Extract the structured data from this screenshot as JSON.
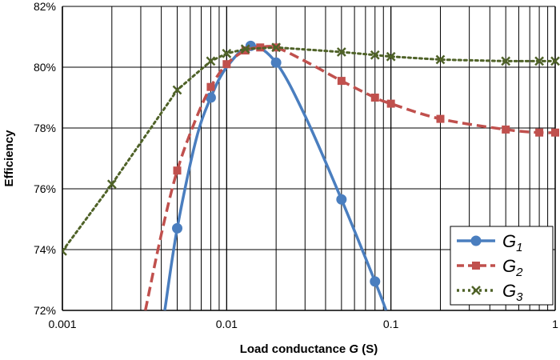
{
  "chart_data": {
    "type": "line",
    "x_scale": "log",
    "xlim": [
      0.001,
      1
    ],
    "ylim": [
      72,
      82
    ],
    "xlabel_prefix": "Load conductance ",
    "xlabel_var": "G",
    "xlabel_suffix": " (S)",
    "ylabel": "Efficiency",
    "grid": true,
    "legend_position": "bottom-right",
    "x_ticks": [
      {
        "value": 0.001,
        "label": "0.001"
      },
      {
        "value": 0.01,
        "label": "0.01"
      },
      {
        "value": 0.1,
        "label": "0.1"
      },
      {
        "value": 1,
        "label": "1"
      }
    ],
    "y_ticks": [
      {
        "value": 72,
        "label": "72%"
      },
      {
        "value": 74,
        "label": "74%"
      },
      {
        "value": 76,
        "label": "76%"
      },
      {
        "value": 78,
        "label": "78%"
      },
      {
        "value": 80,
        "label": "80%"
      },
      {
        "value": 82,
        "label": "82%"
      }
    ],
    "series": [
      {
        "name": "G",
        "name_sub": "1",
        "color": "#4a7ebf",
        "line_style": "solid",
        "marker": "circle",
        "points": [
          {
            "x": 0.005,
            "y": 74.7
          },
          {
            "x": 0.008,
            "y": 79.0
          },
          {
            "x": 0.014,
            "y": 80.7
          },
          {
            "x": 0.02,
            "y": 80.15
          },
          {
            "x": 0.05,
            "y": 75.65
          },
          {
            "x": 0.08,
            "y": 72.95
          }
        ],
        "curve": [
          {
            "x": 0.0042,
            "y": 72.0
          },
          {
            "x": 0.005,
            "y": 74.7
          },
          {
            "x": 0.0065,
            "y": 77.6
          },
          {
            "x": 0.008,
            "y": 79.0
          },
          {
            "x": 0.01,
            "y": 80.0
          },
          {
            "x": 0.014,
            "y": 80.7
          },
          {
            "x": 0.02,
            "y": 80.15
          },
          {
            "x": 0.03,
            "y": 78.4
          },
          {
            "x": 0.05,
            "y": 75.65
          },
          {
            "x": 0.08,
            "y": 72.95
          },
          {
            "x": 0.0935,
            "y": 72.0
          }
        ]
      },
      {
        "name": "G",
        "name_sub": "2",
        "color": "#c0504d",
        "line_style": "dashed",
        "marker": "square",
        "points": [
          {
            "x": 0.005,
            "y": 76.6
          },
          {
            "x": 0.008,
            "y": 79.35
          },
          {
            "x": 0.01,
            "y": 80.1
          },
          {
            "x": 0.013,
            "y": 80.55
          },
          {
            "x": 0.016,
            "y": 80.65
          },
          {
            "x": 0.02,
            "y": 80.65
          },
          {
            "x": 0.05,
            "y": 79.55
          },
          {
            "x": 0.08,
            "y": 79.0
          },
          {
            "x": 0.1,
            "y": 78.8
          },
          {
            "x": 0.2,
            "y": 78.3
          },
          {
            "x": 0.5,
            "y": 77.95
          },
          {
            "x": 0.8,
            "y": 77.85
          },
          {
            "x": 1,
            "y": 77.85
          }
        ],
        "curve": [
          {
            "x": 0.0032,
            "y": 72.0
          },
          {
            "x": 0.004,
            "y": 74.5
          },
          {
            "x": 0.005,
            "y": 76.6
          },
          {
            "x": 0.0065,
            "y": 78.3
          },
          {
            "x": 0.008,
            "y": 79.35
          },
          {
            "x": 0.01,
            "y": 80.1
          },
          {
            "x": 0.013,
            "y": 80.55
          },
          {
            "x": 0.016,
            "y": 80.65
          },
          {
            "x": 0.02,
            "y": 80.65
          },
          {
            "x": 0.03,
            "y": 80.2
          },
          {
            "x": 0.05,
            "y": 79.55
          },
          {
            "x": 0.08,
            "y": 79.0
          },
          {
            "x": 0.1,
            "y": 78.8
          },
          {
            "x": 0.2,
            "y": 78.3
          },
          {
            "x": 0.5,
            "y": 77.95
          },
          {
            "x": 0.8,
            "y": 77.85
          },
          {
            "x": 1,
            "y": 77.85
          }
        ]
      },
      {
        "name": "G",
        "name_sub": "3",
        "color": "#4f6228",
        "line_style": "dotted",
        "marker": "x",
        "points": [
          {
            "x": 0.001,
            "y": 73.95
          },
          {
            "x": 0.002,
            "y": 76.15
          },
          {
            "x": 0.005,
            "y": 79.25
          },
          {
            "x": 0.008,
            "y": 80.2
          },
          {
            "x": 0.01,
            "y": 80.45
          },
          {
            "x": 0.013,
            "y": 80.6
          },
          {
            "x": 0.02,
            "y": 80.65
          },
          {
            "x": 0.05,
            "y": 80.5
          },
          {
            "x": 0.08,
            "y": 80.4
          },
          {
            "x": 0.1,
            "y": 80.35
          },
          {
            "x": 0.2,
            "y": 80.25
          },
          {
            "x": 0.5,
            "y": 80.2
          },
          {
            "x": 0.8,
            "y": 80.2
          },
          {
            "x": 1,
            "y": 80.2
          }
        ]
      }
    ]
  }
}
